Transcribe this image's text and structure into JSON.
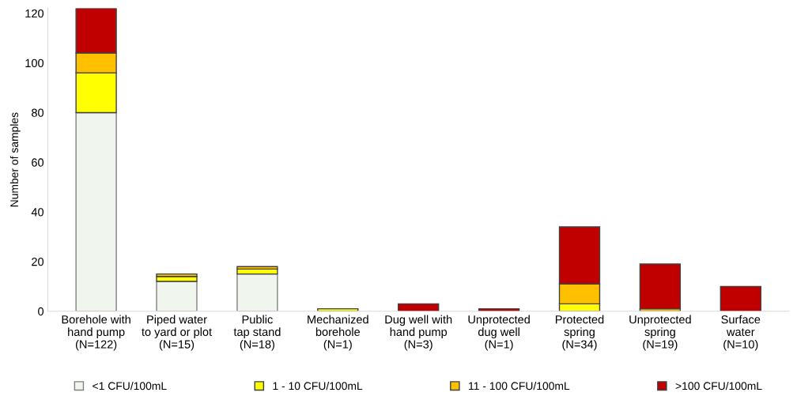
{
  "chart_data": {
    "type": "bar",
    "stacked": true,
    "ylabel": "Number of samples",
    "categories": [
      "Borehole with\nhand pump\n(N=122)",
      "Piped water\nto yard or plot\n(N=15)",
      "Public\ntap stand\n(N=18)",
      "Mechanized\nborehole\n(N=1)",
      "Dug well with\nhand pump\n(N=3)",
      "Unprotected\ndug well\n(N=1)",
      "Protected\nspring\n(N=34)",
      "Unprotected\nspring\n(N=19)",
      "Surface\nwater\n(N=10)"
    ],
    "series": [
      {
        "name": "<1 CFU/100mL",
        "color": "#f0f5ee",
        "values": [
          80,
          12,
          15,
          0,
          0,
          0,
          0,
          0,
          0
        ]
      },
      {
        "name": "1 - 10 CFU/100mL",
        "color": "#ffff00",
        "values": [
          16,
          2,
          2,
          1,
          0,
          0,
          3,
          0,
          0
        ]
      },
      {
        "name": "11 - 100 CFU/100mL",
        "color": "#ffc000",
        "values": [
          8,
          1,
          1,
          0,
          0,
          0,
          8,
          1,
          0
        ]
      },
      {
        "name": ">100 CFU/100mL",
        "color": "#c00000",
        "values": [
          18,
          0,
          0,
          0,
          3,
          1,
          23,
          18,
          10
        ]
      }
    ],
    "ylim": [
      0,
      122
    ],
    "yticks": [
      0,
      20,
      40,
      60,
      80,
      100,
      120
    ],
    "grid": false,
    "legend": "bottom"
  }
}
